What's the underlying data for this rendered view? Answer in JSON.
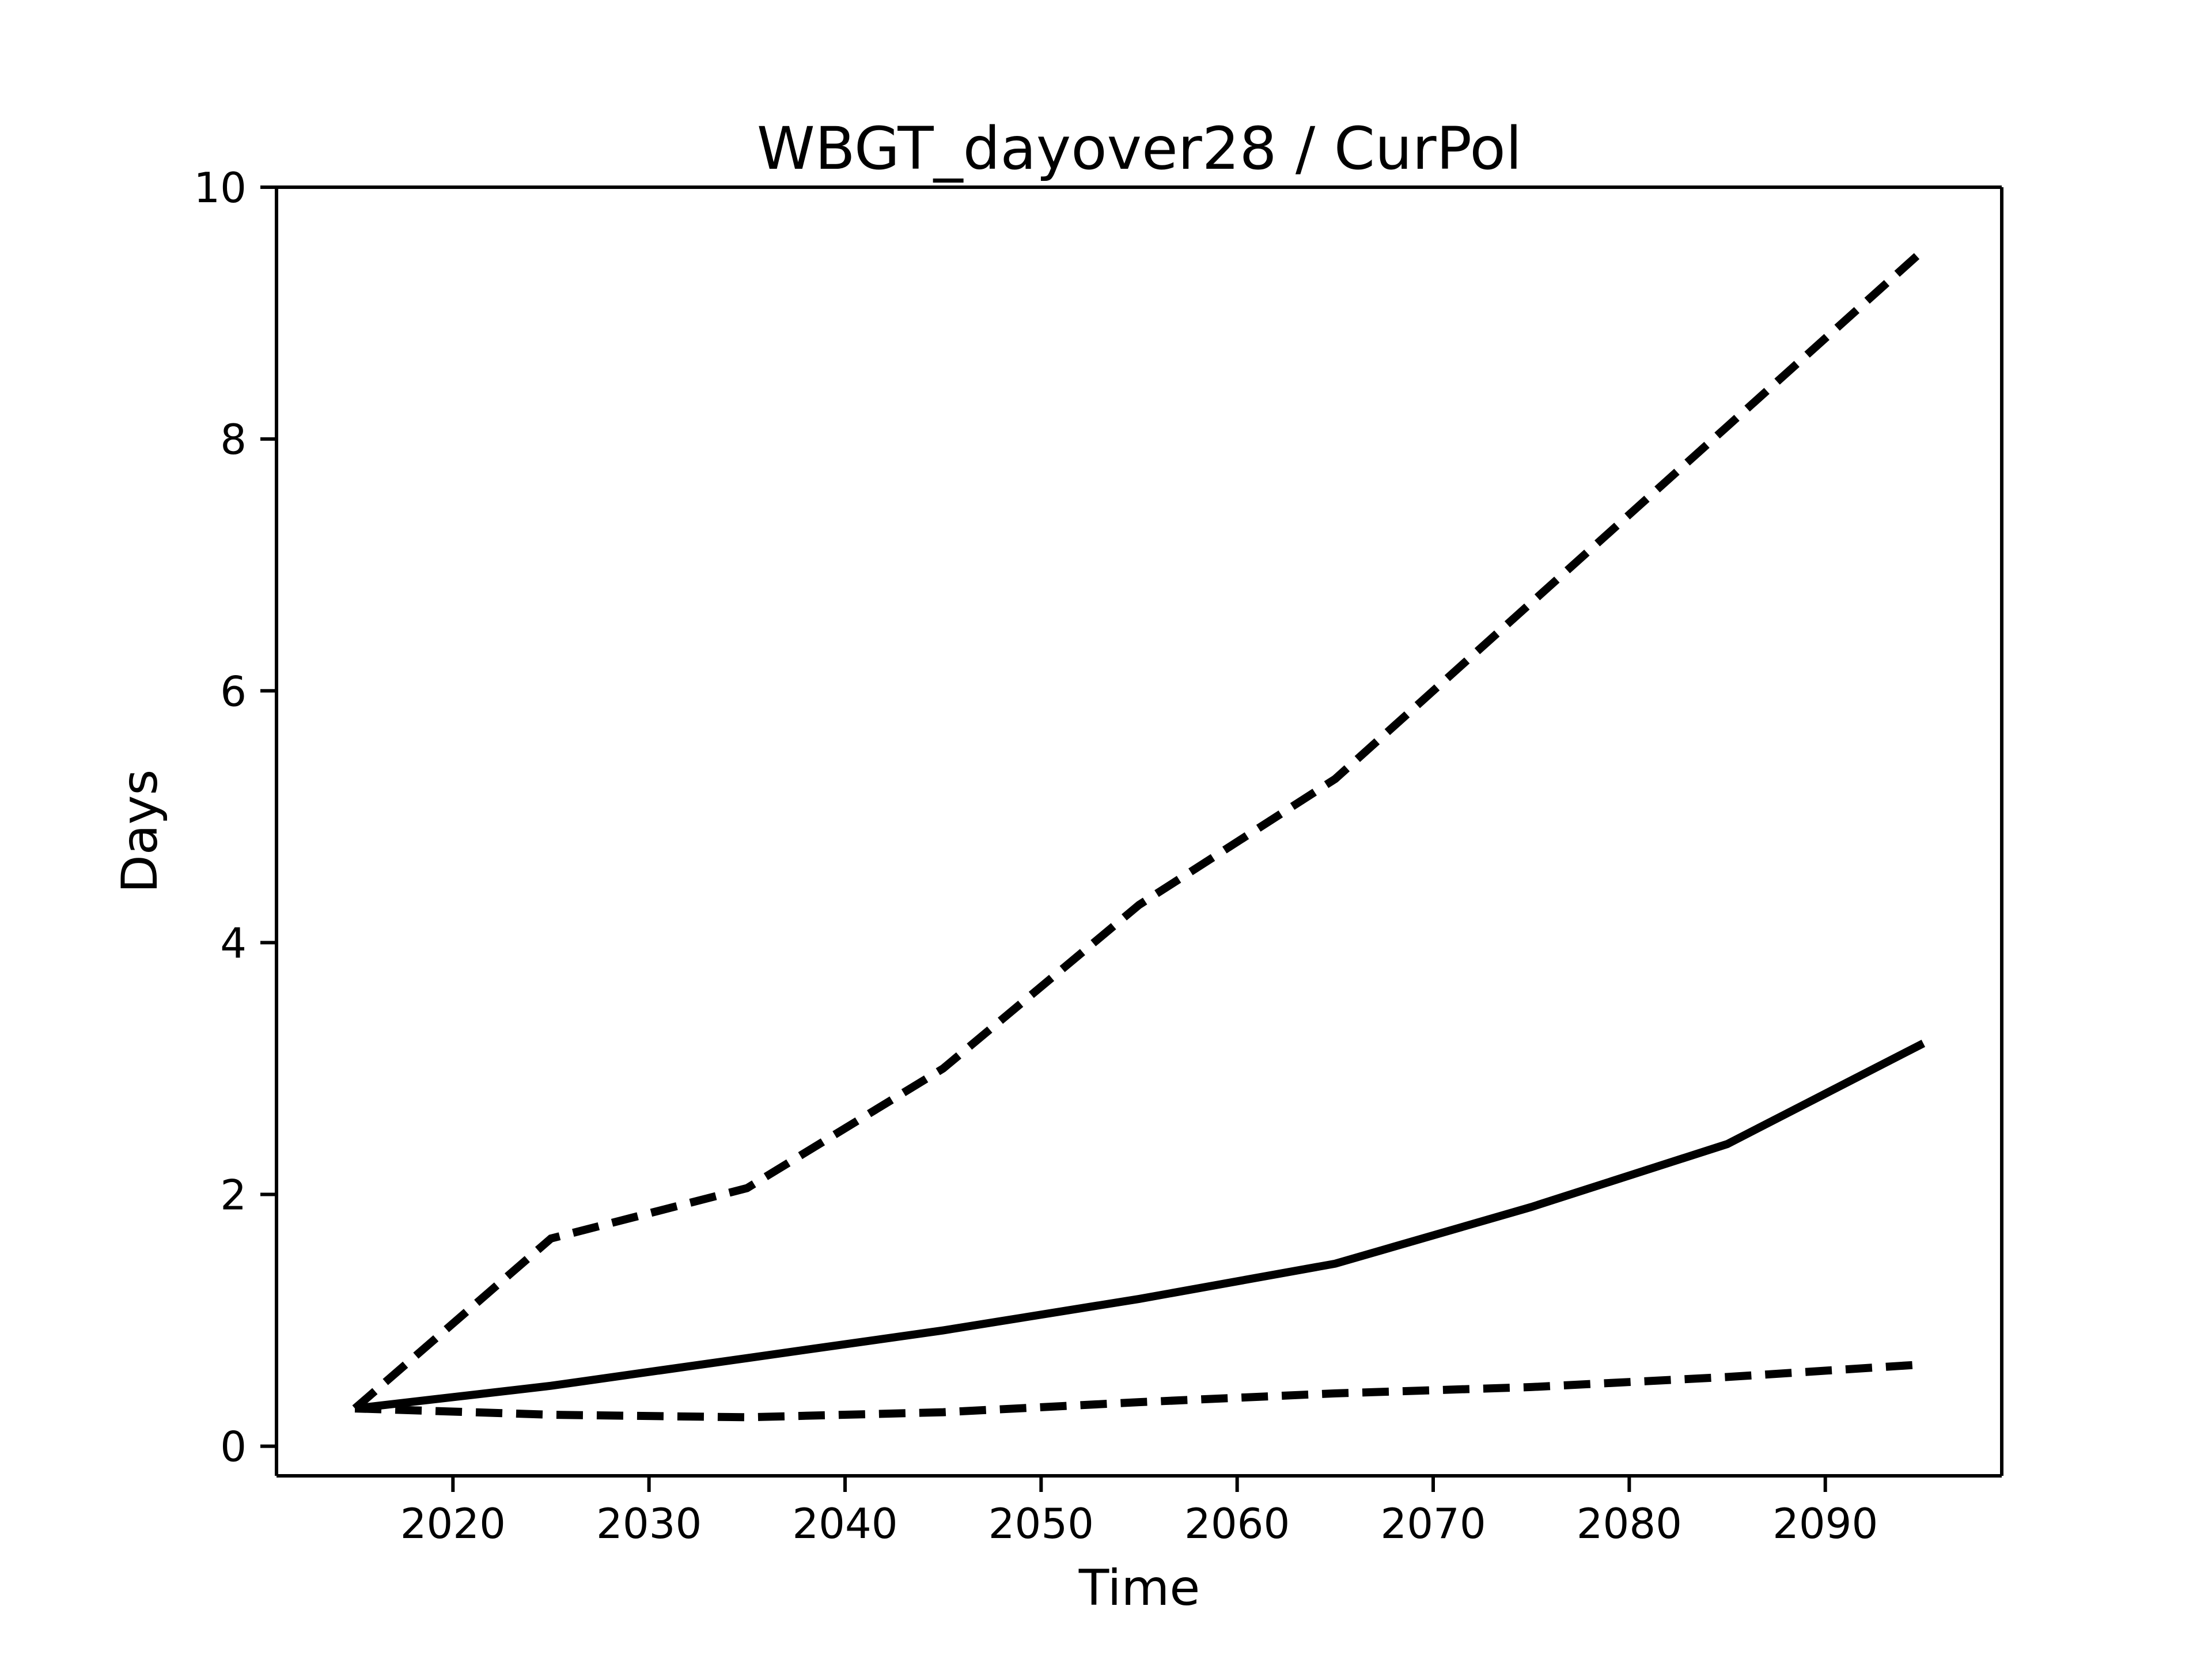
{
  "figure": {
    "title": "WBGT_dayover28 / CurPol",
    "background_color": "#ffffff",
    "foreground_color": "#000000"
  },
  "chart_data": {
    "type": "line",
    "title": "WBGT_dayover28 / CurPol",
    "xlabel": "Time",
    "ylabel": "Days",
    "x": [
      2015,
      2025,
      2035,
      2045,
      2055,
      2065,
      2075,
      2085,
      2095
    ],
    "series": [
      {
        "name": "upper_dashed",
        "style": "dashed",
        "values": [
          0.3,
          1.65,
          2.05,
          3.0,
          4.3,
          5.3,
          6.7,
          8.1,
          9.5
        ]
      },
      {
        "name": "solid_middle",
        "style": "solid",
        "values": [
          0.3,
          0.48,
          0.7,
          0.92,
          1.17,
          1.45,
          1.9,
          2.4,
          3.2
        ]
      },
      {
        "name": "lower_dashed",
        "style": "dashed",
        "values": [
          0.3,
          0.25,
          0.23,
          0.27,
          0.35,
          0.42,
          0.47,
          0.55,
          0.65
        ]
      }
    ],
    "xticks": [
      2020,
      2030,
      2040,
      2050,
      2060,
      2070,
      2080,
      2090
    ],
    "yticks": [
      0,
      2,
      4,
      6,
      8,
      10
    ],
    "xlim": [
      2011,
      2099
    ],
    "ylim": [
      -0.235,
      10.0
    ],
    "grid": false,
    "legend": null,
    "line_color": "#000000"
  }
}
